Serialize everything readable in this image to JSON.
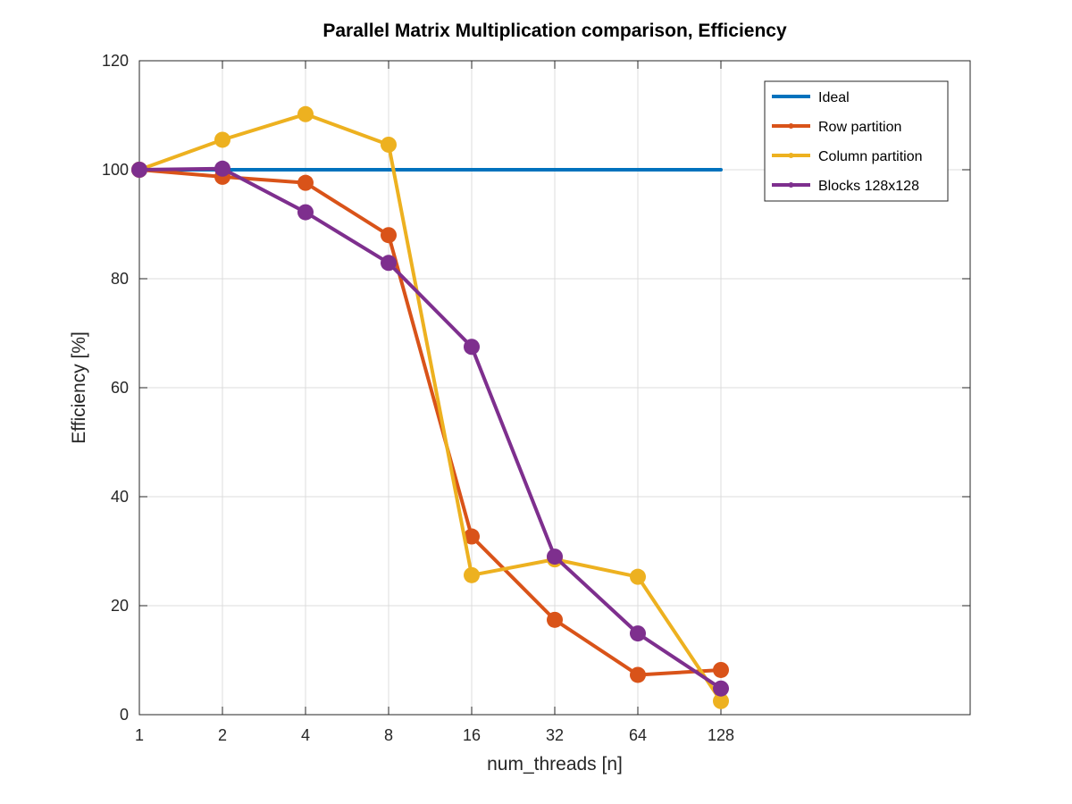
{
  "chart_data": {
    "type": "line",
    "title": "Parallel Matrix Multiplication comparison, Efficiency",
    "xlabel": "num_threads [n]",
    "ylabel": "Efficiency [%]",
    "x_scale": "log2",
    "x": [
      1,
      2,
      4,
      8,
      16,
      32,
      64,
      128
    ],
    "x_tick_labels": [
      "1",
      "2",
      "4",
      "8",
      "16",
      "32",
      "64",
      "128"
    ],
    "xlim": [
      1,
      1024
    ],
    "ylim": [
      0,
      120
    ],
    "y_ticks": [
      0,
      20,
      40,
      60,
      80,
      100,
      120
    ],
    "grid": true,
    "legend_position": "top-right",
    "series": [
      {
        "name": "Ideal",
        "color": "#0072BD",
        "markers": false,
        "values": [
          100,
          100,
          100,
          100,
          100,
          100,
          100,
          100
        ]
      },
      {
        "name": "Row partition",
        "color": "#D95319",
        "markers": true,
        "values": [
          100,
          98.7,
          97.6,
          88,
          32.7,
          17.4,
          7.3,
          8.2
        ]
      },
      {
        "name": "Column partition",
        "color": "#EDB120",
        "markers": true,
        "values": [
          100,
          105.5,
          110.2,
          104.6,
          25.6,
          28.5,
          25.3,
          2.5
        ]
      },
      {
        "name": "Blocks 128x128",
        "color": "#7E2F8E",
        "markers": true,
        "values": [
          100,
          100.2,
          92.2,
          82.9,
          67.5,
          29,
          14.9,
          4.8
        ]
      }
    ]
  }
}
